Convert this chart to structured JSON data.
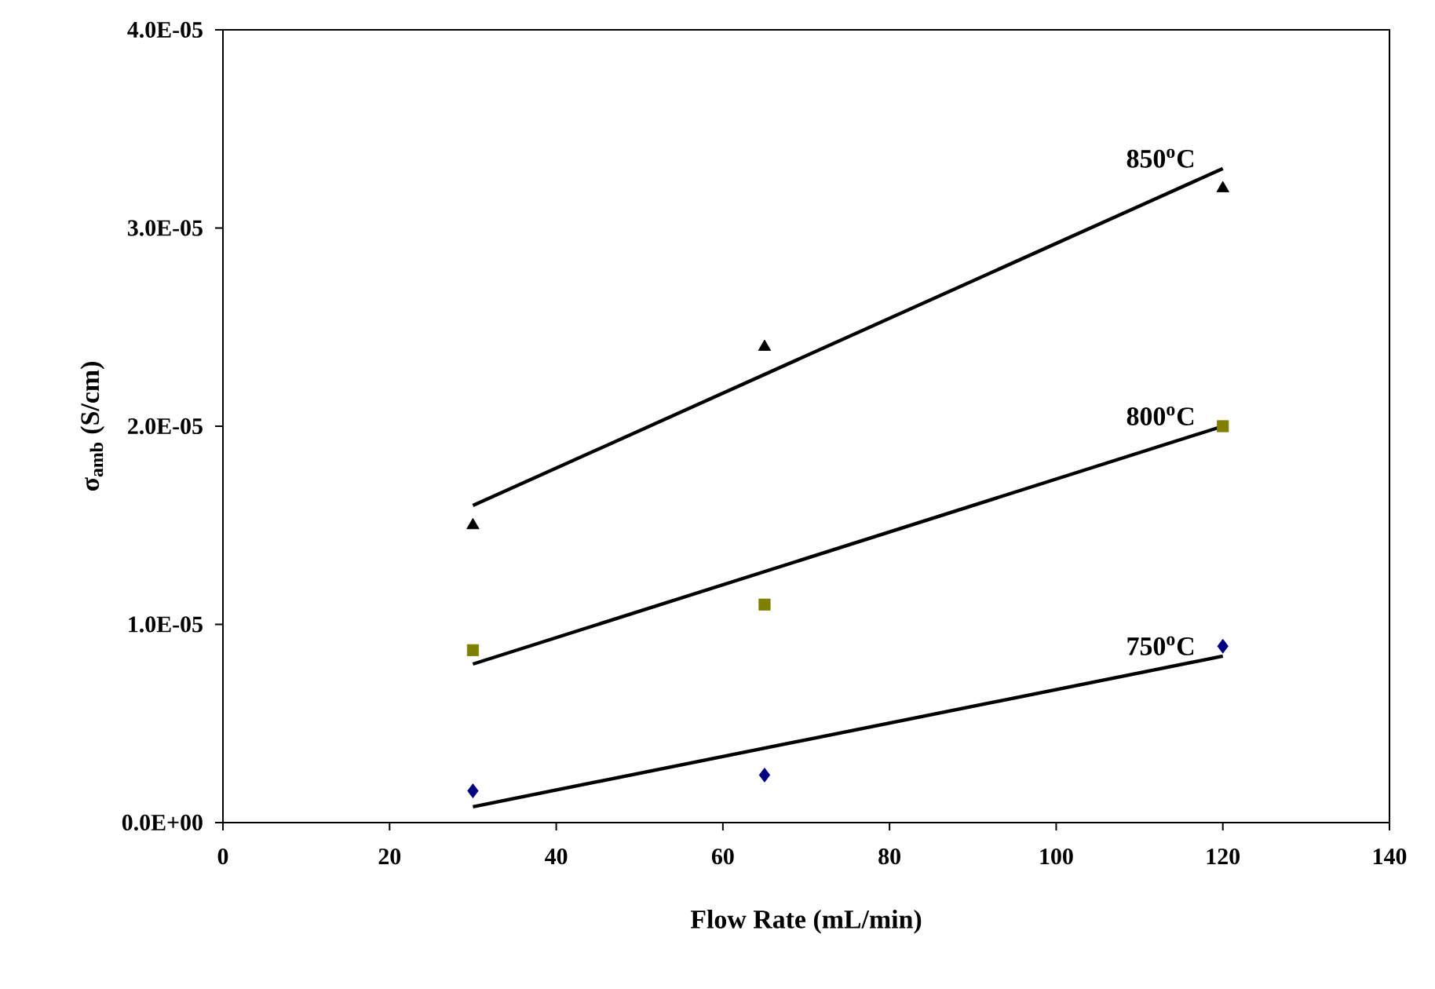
{
  "chart_data": {
    "type": "scatter",
    "xlabel": "Flow Rate (mL/min)",
    "ylabel": "σ$_{amb}$ (S/cm)",
    "xlim": [
      0,
      140
    ],
    "xticks": [
      0,
      20,
      40,
      60,
      80,
      100,
      120,
      140
    ],
    "ylim": [
      0,
      4e-05
    ],
    "yticks": [
      {
        "value": 0,
        "label": "0.0E+00"
      },
      {
        "value": 1e-05,
        "label": "1.0E-05"
      },
      {
        "value": 2e-05,
        "label": "2.0E-05"
      },
      {
        "value": 3e-05,
        "label": "3.0E-05"
      },
      {
        "value": 4e-05,
        "label": "4.0E-05"
      }
    ],
    "grid": false,
    "legend": false,
    "series": [
      {
        "marker": "diamond",
        "color": "#000080",
        "x": [
          30,
          65,
          120
        ],
        "values": [
          1.6e-06,
          2.4e-06,
          8.9e-06
        ]
      },
      {
        "marker": "square",
        "color": "#808000",
        "x": [
          30,
          65,
          120
        ],
        "values": [
          8.7e-06,
          1.1e-05,
          2e-05
        ]
      },
      {
        "marker": "triangle",
        "color": "#000000",
        "x": [
          30,
          65,
          120
        ],
        "values": [
          1.5e-05,
          2.4e-05,
          3.2e-05
        ]
      },
      {
        "name": "750$^{o}$C",
        "type": "line",
        "marker": "none",
        "line_style": "solid",
        "color": "#000000",
        "x": [
          30,
          120
        ],
        "values": [
          8e-07,
          8.4e-06
        ]
      },
      {
        "name": "800$^{o}$C",
        "type": "line",
        "marker": "none",
        "line_style": "solid",
        "color": "#000000",
        "x": [
          30,
          120
        ],
        "values": [
          8e-06,
          2e-05
        ]
      },
      {
        "name": "850$^{o}$C",
        "type": "line",
        "marker": "none",
        "line_style": "solid",
        "color": "#000000",
        "x": [
          30,
          120
        ],
        "values": [
          1.6e-05,
          3.3e-05
        ]
      }
    ]
  }
}
